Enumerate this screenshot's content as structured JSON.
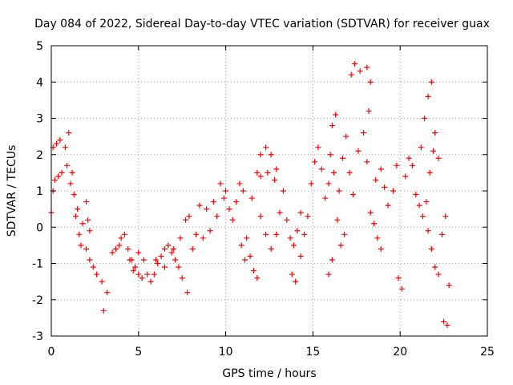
{
  "chart_data": {
    "type": "scatter",
    "title": "Day 084 of 2022, Sidereal Day-to-day VTEC variation (SDTVAR) for receiver guax",
    "xlabel": "GPS time / hours",
    "ylabel": "SDTVAR / TECUs",
    "xlim": [
      0,
      25
    ],
    "ylim": [
      -3,
      5
    ],
    "xticks": [
      "0",
      "5",
      "10",
      "15",
      "20",
      "25"
    ],
    "yticks": [
      "-3",
      "-2",
      "-1",
      "0",
      "1",
      "2",
      "3",
      "4",
      "5"
    ],
    "grid": true,
    "marker": "plus",
    "color": "#ff0000",
    "series": [
      {
        "name": "SDTVAR",
        "points": [
          [
            0.0,
            0.4
          ],
          [
            0.1,
            1.0
          ],
          [
            0.1,
            2.2
          ],
          [
            0.2,
            1.3
          ],
          [
            0.3,
            2.3
          ],
          [
            0.4,
            1.4
          ],
          [
            0.5,
            2.4
          ],
          [
            0.6,
            1.5
          ],
          [
            0.8,
            2.2
          ],
          [
            0.9,
            1.7
          ],
          [
            1.0,
            2.6
          ],
          [
            1.1,
            1.2
          ],
          [
            1.2,
            1.5
          ],
          [
            1.3,
            0.9
          ],
          [
            1.4,
            0.3
          ],
          [
            1.5,
            0.5
          ],
          [
            1.6,
            -0.2
          ],
          [
            1.7,
            -0.5
          ],
          [
            1.8,
            0.1
          ],
          [
            2.0,
            -0.6
          ],
          [
            2.2,
            -0.9
          ],
          [
            2.4,
            -1.1
          ],
          [
            2.6,
            -1.3
          ],
          [
            2.0,
            0.7
          ],
          [
            2.1,
            0.2
          ],
          [
            2.2,
            -0.1
          ],
          [
            2.9,
            -1.5
          ],
          [
            3.0,
            -2.3
          ],
          [
            3.2,
            -1.8
          ],
          [
            3.5,
            -0.7
          ],
          [
            3.7,
            -0.6
          ],
          [
            3.9,
            -0.5
          ],
          [
            4.0,
            -0.3
          ],
          [
            4.2,
            -0.2
          ],
          [
            4.4,
            -0.6
          ],
          [
            4.6,
            -0.9
          ],
          [
            4.8,
            -1.1
          ],
          [
            5.0,
            -1.3
          ],
          [
            5.2,
            -1.4
          ],
          [
            4.5,
            -0.9
          ],
          [
            4.7,
            -1.2
          ],
          [
            5.0,
            -0.7
          ],
          [
            5.3,
            -0.9
          ],
          [
            5.5,
            -1.3
          ],
          [
            5.7,
            -1.5
          ],
          [
            5.9,
            -1.3
          ],
          [
            6.1,
            -1.0
          ],
          [
            6.3,
            -0.8
          ],
          [
            6.5,
            -0.6
          ],
          [
            6.7,
            -0.5
          ],
          [
            6.9,
            -0.7
          ],
          [
            7.1,
            -0.9
          ],
          [
            7.3,
            -1.1
          ],
          [
            7.5,
            -1.4
          ],
          [
            7.8,
            -1.8
          ],
          [
            6.0,
            -0.9
          ],
          [
            6.5,
            -1.1
          ],
          [
            7.0,
            -0.6
          ],
          [
            7.4,
            -0.3
          ],
          [
            7.7,
            0.2
          ],
          [
            7.9,
            0.3
          ],
          [
            8.1,
            -0.6
          ],
          [
            8.3,
            -0.2
          ],
          [
            8.5,
            0.6
          ],
          [
            8.7,
            -0.3
          ],
          [
            8.9,
            0.5
          ],
          [
            9.1,
            -0.1
          ],
          [
            9.3,
            0.7
          ],
          [
            9.5,
            0.3
          ],
          [
            9.7,
            1.2
          ],
          [
            9.9,
            0.8
          ],
          [
            10.0,
            1.0
          ],
          [
            10.2,
            0.5
          ],
          [
            10.4,
            0.2
          ],
          [
            10.6,
            0.7
          ],
          [
            10.8,
            1.2
          ],
          [
            11.0,
            1.0
          ],
          [
            11.2,
            -0.3
          ],
          [
            11.4,
            -0.8
          ],
          [
            11.6,
            -1.2
          ],
          [
            11.8,
            -1.4
          ],
          [
            10.9,
            -0.5
          ],
          [
            11.1,
            -0.9
          ],
          [
            11.5,
            0.8
          ],
          [
            11.8,
            1.5
          ],
          [
            12.0,
            2.0
          ],
          [
            12.3,
            2.2
          ],
          [
            12.6,
            2.0
          ],
          [
            12.9,
            1.6
          ],
          [
            12.0,
            1.4
          ],
          [
            12.4,
            1.5
          ],
          [
            12.8,
            1.3
          ],
          [
            12.0,
            0.3
          ],
          [
            12.3,
            -0.2
          ],
          [
            12.6,
            -0.6
          ],
          [
            12.9,
            -0.2
          ],
          [
            13.1,
            0.4
          ],
          [
            13.3,
            1.0
          ],
          [
            13.5,
            0.2
          ],
          [
            13.7,
            -0.3
          ],
          [
            13.9,
            -0.5
          ],
          [
            14.1,
            -0.1
          ],
          [
            14.3,
            0.4
          ],
          [
            13.8,
            -1.3
          ],
          [
            14.0,
            -1.5
          ],
          [
            14.3,
            -0.8
          ],
          [
            14.5,
            -0.2
          ],
          [
            14.7,
            0.3
          ],
          [
            14.9,
            1.2
          ],
          [
            15.1,
            1.8
          ],
          [
            15.3,
            2.2
          ],
          [
            15.5,
            1.6
          ],
          [
            15.7,
            0.8
          ],
          [
            15.9,
            1.2
          ],
          [
            16.0,
            2.0
          ],
          [
            16.2,
            1.5
          ],
          [
            16.4,
            0.2
          ],
          [
            16.6,
            -0.5
          ],
          [
            16.8,
            -0.2
          ],
          [
            16.1,
            2.8
          ],
          [
            16.3,
            3.1
          ],
          [
            15.9,
            -1.3
          ],
          [
            16.1,
            -0.9
          ],
          [
            16.5,
            1.0
          ],
          [
            16.7,
            1.9
          ],
          [
            16.9,
            2.5
          ],
          [
            17.1,
            1.5
          ],
          [
            17.3,
            0.9
          ],
          [
            17.2,
            4.2
          ],
          [
            17.4,
            4.5
          ],
          [
            17.7,
            4.3
          ],
          [
            18.1,
            4.4
          ],
          [
            18.3,
            4.0
          ],
          [
            18.2,
            3.2
          ],
          [
            17.6,
            2.1
          ],
          [
            17.9,
            2.6
          ],
          [
            18.1,
            1.8
          ],
          [
            18.3,
            0.4
          ],
          [
            18.5,
            0.1
          ],
          [
            18.7,
            -0.3
          ],
          [
            18.9,
            -0.6
          ],
          [
            18.6,
            1.3
          ],
          [
            18.9,
            1.6
          ],
          [
            19.1,
            1.1
          ],
          [
            19.3,
            0.6
          ],
          [
            19.6,
            1.0
          ],
          [
            19.8,
            1.7
          ],
          [
            19.9,
            -1.4
          ],
          [
            20.1,
            -1.7
          ],
          [
            20.3,
            1.4
          ],
          [
            20.5,
            1.9
          ],
          [
            20.7,
            1.7
          ],
          [
            20.9,
            0.9
          ],
          [
            21.1,
            0.6
          ],
          [
            21.3,
            0.3
          ],
          [
            21.5,
            0.7
          ],
          [
            21.7,
            1.5
          ],
          [
            21.9,
            2.1
          ],
          [
            21.2,
            2.2
          ],
          [
            21.4,
            3.0
          ],
          [
            21.6,
            3.6
          ],
          [
            21.8,
            4.0
          ],
          [
            22.0,
            2.6
          ],
          [
            22.2,
            1.9
          ],
          [
            21.6,
            -0.1
          ],
          [
            21.8,
            -0.6
          ],
          [
            22.0,
            -1.1
          ],
          [
            22.2,
            -1.3
          ],
          [
            22.4,
            -0.2
          ],
          [
            22.6,
            0.3
          ],
          [
            22.8,
            -1.6
          ],
          [
            22.5,
            -2.6
          ],
          [
            22.7,
            -2.7
          ]
        ]
      }
    ]
  }
}
